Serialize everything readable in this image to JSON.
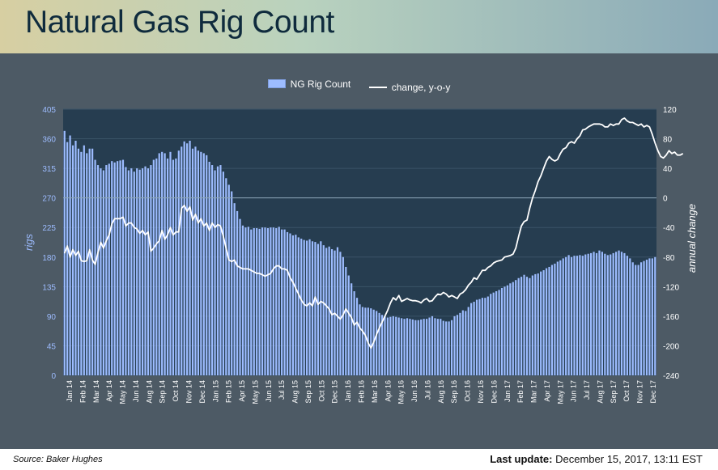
{
  "title": "Natural Gas Rig Count",
  "legend": {
    "bar_label": "NG Rig Count",
    "line_label": "change, y-o-y"
  },
  "footer": {
    "source": "Source: Baker Hughes",
    "update_label": "Last update:",
    "update_value": "December 15, 2017, 13:11 EST"
  },
  "colors": {
    "bar": "#9dbcff",
    "line": "#ffffff",
    "plot_bg": "#263d50",
    "axis_left_text": "#9dbcff",
    "axis_right_text": "#ffffff"
  },
  "chart_data": {
    "type": "bar",
    "title": "Natural Gas Rig Count",
    "ylabel": "rigs",
    "y2label": "annual change",
    "ylim": [
      0,
      405
    ],
    "y2lim": [
      -240,
      120
    ],
    "yticks": [
      0,
      45,
      90,
      135,
      180,
      225,
      270,
      315,
      360,
      405
    ],
    "y2ticks": [
      -240,
      -200,
      -160,
      -120,
      -80,
      -40,
      0,
      40,
      80,
      120
    ],
    "xticklabels": [
      "Jan 14",
      "Feb 14",
      "Mar 14",
      "Apr 14",
      "May 14",
      "Jun 14",
      "Aug 14",
      "Sep 14",
      "Oct 14",
      "Nov 14",
      "Dec 14",
      "Jan 15",
      "Feb 15",
      "Apr 15",
      "May 15",
      "Jun 15",
      "Jul 15",
      "Aug 15",
      "Sep 15",
      "Oct 15",
      "Dec 15",
      "Jan 16",
      "Feb 16",
      "Mar 16",
      "Apr 16",
      "May 16",
      "Jun 16",
      "Jul 16",
      "Aug 16",
      "Sep 16",
      "Oct 16",
      "Nov 16",
      "Dec 16",
      "Jan 17",
      "Feb 17",
      "Mar 17",
      "Apr 17",
      "May 17",
      "Jun 17",
      "Jul 17",
      "Aug 17",
      "Sep 17",
      "Oct 17",
      "Nov 17",
      "Dec 17"
    ],
    "grid": true,
    "legend_position": "top-center",
    "series": [
      {
        "name": "NG Rig Count",
        "kind": "bar",
        "axis": "left",
        "values": [
          372,
          355,
          365,
          350,
          357,
          345,
          340,
          350,
          338,
          345,
          345,
          328,
          320,
          315,
          312,
          320,
          322,
          326,
          324,
          326,
          327,
          328,
          317,
          312,
          315,
          310,
          315,
          313,
          315,
          318,
          315,
          320,
          328,
          330,
          338,
          340,
          338,
          330,
          340,
          328,
          330,
          342,
          348,
          356,
          353,
          357,
          345,
          348,
          342,
          340,
          338,
          335,
          325,
          320,
          312,
          318,
          320,
          310,
          300,
          290,
          280,
          262,
          250,
          238,
          228,
          225,
          226,
          222,
          224,
          224,
          223,
          225,
          225,
          224,
          225,
          225,
          224,
          226,
          222,
          222,
          218,
          216,
          213,
          214,
          210,
          208,
          206,
          205,
          207,
          204,
          203,
          200,
          204,
          198,
          194,
          196,
          192,
          190,
          195,
          188,
          180,
          165,
          152,
          140,
          128,
          118,
          108,
          104,
          103,
          103,
          102,
          100,
          98,
          95,
          92,
          90,
          88,
          89,
          90,
          89,
          88,
          87,
          86,
          87,
          86,
          85,
          84,
          84,
          85,
          86,
          86,
          88,
          90,
          87,
          86,
          86,
          83,
          82,
          82,
          84,
          90,
          92,
          95,
          99,
          98,
          104,
          110,
          112,
          115,
          116,
          118,
          118,
          120,
          124,
          126,
          128,
          130,
          133,
          135,
          137,
          140,
          142,
          145,
          148,
          150,
          153,
          150,
          148,
          152,
          154,
          155,
          158,
          160,
          163,
          165,
          168,
          170,
          173,
          175,
          178,
          180,
          183,
          180,
          182,
          182,
          183,
          182,
          184,
          185,
          186,
          188,
          186,
          190,
          188,
          185,
          183,
          184,
          186,
          188,
          190,
          188,
          186,
          182,
          178,
          172,
          168,
          168,
          172,
          174,
          176,
          178,
          178,
          180
        ]
      },
      {
        "name": "change, y-o-y",
        "kind": "line",
        "axis": "right",
        "values": [
          -75,
          -65,
          -80,
          -70,
          -78,
          -72,
          -85,
          -86,
          -85,
          -70,
          -84,
          -90,
          -74,
          -60,
          -68,
          -58,
          -50,
          -35,
          -28,
          -28,
          -28,
          -26,
          -38,
          -34,
          -34,
          -40,
          -42,
          -48,
          -44,
          -50,
          -46,
          -72,
          -68,
          -62,
          -58,
          -44,
          -56,
          -50,
          -40,
          -50,
          -46,
          -46,
          -14,
          -10,
          -18,
          -12,
          -30,
          -22,
          -34,
          -28,
          -38,
          -34,
          -44,
          -34,
          -40,
          -36,
          -38,
          -52,
          -68,
          -84,
          -86,
          -84,
          -92,
          -94,
          -96,
          -96,
          -96,
          -98,
          -100,
          -102,
          -102,
          -104,
          -106,
          -104,
          -102,
          -96,
          -92,
          -92,
          -96,
          -96,
          -98,
          -108,
          -114,
          -122,
          -130,
          -138,
          -144,
          -146,
          -142,
          -146,
          -134,
          -144,
          -140,
          -142,
          -146,
          -150,
          -158,
          -156,
          -160,
          -164,
          -158,
          -150,
          -156,
          -162,
          -172,
          -168,
          -176,
          -180,
          -186,
          -196,
          -203,
          -195,
          -185,
          -176,
          -168,
          -160,
          -152,
          -142,
          -135,
          -138,
          -132,
          -140,
          -138,
          -136,
          -138,
          -139,
          -139,
          -140,
          -142,
          -138,
          -136,
          -140,
          -139,
          -134,
          -130,
          -131,
          -128,
          -130,
          -134,
          -132,
          -134,
          -136,
          -130,
          -128,
          -124,
          -118,
          -114,
          -108,
          -110,
          -104,
          -98,
          -98,
          -94,
          -92,
          -88,
          -86,
          -85,
          -84,
          -80,
          -79,
          -78,
          -76,
          -68,
          -52,
          -38,
          -32,
          -30,
          -14,
          0,
          10,
          22,
          30,
          40,
          50,
          56,
          52,
          50,
          52,
          60,
          66,
          68,
          74,
          76,
          74,
          80,
          84,
          92,
          93,
          96,
          98,
          100,
          100,
          100,
          99,
          96,
          96,
          100,
          98,
          100,
          100,
          106,
          108,
          104,
          102,
          102,
          100,
          98,
          100,
          96,
          98,
          96,
          86,
          74,
          64,
          56,
          54,
          58,
          64,
          60,
          62,
          58,
          58,
          60
        ]
      }
    ]
  }
}
